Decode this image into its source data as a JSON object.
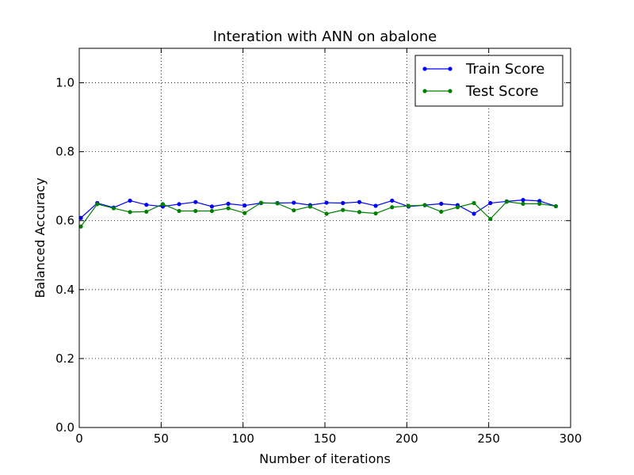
{
  "chart_data": {
    "type": "line",
    "title": "Interation with ANN on abalone",
    "xlabel": "Number of iterations",
    "ylabel": "Balanced Accuracy",
    "xlim": [
      0,
      300
    ],
    "ylim": [
      0,
      1.1
    ],
    "xticks": [
      "0",
      "50",
      "100",
      "150",
      "200",
      "250",
      "300"
    ],
    "yticks": [
      "0.0",
      "0.2",
      "0.4",
      "0.6",
      "0.8",
      "1.0"
    ],
    "grid": true,
    "legend_position": "top-right",
    "x": [
      1,
      11,
      21,
      31,
      41,
      51,
      61,
      71,
      81,
      91,
      101,
      111,
      121,
      131,
      141,
      151,
      161,
      171,
      181,
      191,
      201,
      211,
      221,
      231,
      241,
      251,
      261,
      271,
      281,
      291
    ],
    "series": [
      {
        "name": "Train Score",
        "color": "#0000ff",
        "values": [
          0.608,
          0.651,
          0.638,
          0.658,
          0.646,
          0.641,
          0.648,
          0.654,
          0.641,
          0.649,
          0.644,
          0.651,
          0.651,
          0.652,
          0.645,
          0.652,
          0.651,
          0.654,
          0.643,
          0.658,
          0.641,
          0.645,
          0.649,
          0.645,
          0.62,
          0.651,
          0.656,
          0.66,
          0.657,
          0.642
        ]
      },
      {
        "name": "Test Score",
        "color": "#008000",
        "values": [
          0.583,
          0.648,
          0.636,
          0.625,
          0.626,
          0.648,
          0.628,
          0.628,
          0.628,
          0.636,
          0.622,
          0.652,
          0.65,
          0.63,
          0.641,
          0.62,
          0.631,
          0.625,
          0.621,
          0.639,
          0.643,
          0.645,
          0.626,
          0.639,
          0.651,
          0.605,
          0.655,
          0.649,
          0.649,
          0.642
        ]
      }
    ]
  }
}
